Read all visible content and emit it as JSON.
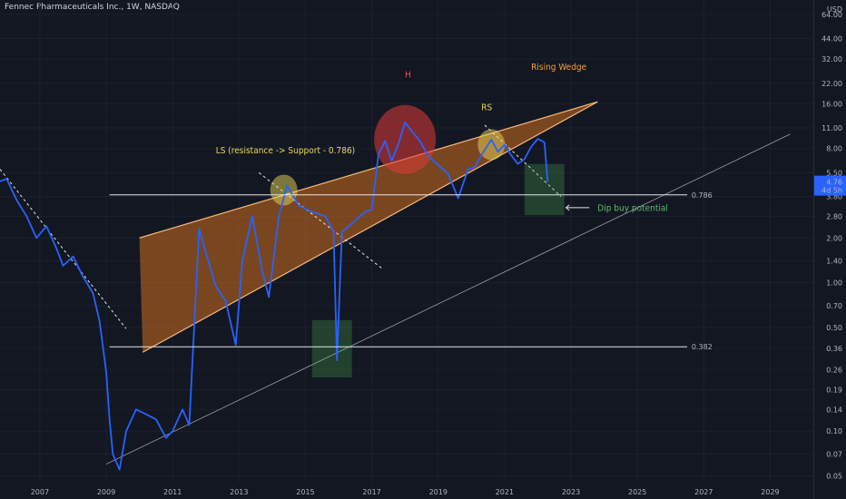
{
  "header": {
    "title": "Fennec Pharmaceuticals Inc., 1W, NASDAQ"
  },
  "colors": {
    "background": "#131722",
    "grid": "#1c2030",
    "price_line": "#2962ff",
    "wedge_fill": "#b8641e",
    "wedge_edge": "#f5b97a",
    "axis_text": "#b2b5be",
    "price_badge": "#2962ff"
  },
  "chart_data": {
    "type": "line",
    "title": "Fennec Pharmaceuticals Inc., 1W, NASDAQ",
    "y_scale": "log",
    "y_unit": "USD",
    "xlim": [
      2005.8,
      2030.3
    ],
    "ylim": [
      0.045,
      80
    ],
    "grid": true,
    "x_ticks": [
      "2007",
      "2009",
      "2011",
      "2013",
      "2015",
      "2017",
      "2019",
      "2021",
      "2023",
      "2025",
      "2027",
      "2029"
    ],
    "y_ticks": [
      "64.00",
      "44.00",
      "32.00",
      "22.00",
      "16.00",
      "11.00",
      "8.00",
      "5.50",
      "3.80",
      "2.80",
      "2.00",
      "1.40",
      "1.00",
      "0.70",
      "0.50",
      "0.36",
      "0.26",
      "0.19",
      "0.14",
      "0.10",
      "0.07",
      "0.05"
    ],
    "last_price": {
      "value": 4.76,
      "label": "4.76",
      "countdown": "4d 5h"
    },
    "series": [
      {
        "x": [
          2005.8,
          2006.0,
          2006.3,
          2006.6,
          2006.9,
          2007.2,
          2007.5,
          2007.7,
          2008.0,
          2008.3,
          2008.6,
          2008.8,
          2009.0,
          2009.1,
          2009.2,
          2009.4,
          2009.6,
          2009.9,
          2010.2,
          2010.5,
          2010.8,
          2011.0,
          2011.3,
          2011.5,
          2011.65,
          2011.8,
          2012.0,
          2012.3,
          2012.6,
          2012.9,
          2013.1,
          2013.4,
          2013.7,
          2013.9,
          2014.2,
          2014.45,
          2014.8,
          2015.2,
          2015.6,
          2015.85,
          2015.95,
          2016.1,
          2016.4,
          2016.8,
          2017.0,
          2017.2,
          2017.4,
          2017.6,
          2017.8,
          2018.0,
          2018.2,
          2018.45,
          2018.7,
          2019.0,
          2019.3,
          2019.6,
          2019.9,
          2020.1,
          2020.35,
          2020.6,
          2020.8,
          2021.0,
          2021.2,
          2021.4,
          2021.6,
          2021.8,
          2022.0,
          2022.2,
          2022.3
        ],
        "values": [
          4.8,
          5.0,
          3.6,
          2.8,
          2.0,
          2.4,
          1.7,
          1.3,
          1.5,
          1.1,
          0.85,
          0.55,
          0.25,
          0.12,
          0.07,
          0.055,
          0.1,
          0.14,
          0.13,
          0.12,
          0.09,
          0.1,
          0.14,
          0.11,
          0.5,
          2.3,
          1.6,
          0.95,
          0.75,
          0.38,
          1.4,
          2.8,
          1.2,
          0.8,
          2.8,
          4.5,
          3.3,
          3.0,
          2.8,
          2.2,
          0.3,
          2.2,
          2.5,
          3.0,
          3.1,
          7.3,
          9.0,
          6.6,
          8.6,
          12.0,
          10.5,
          9.0,
          7.1,
          6.2,
          5.4,
          3.7,
          5.8,
          6.0,
          7.5,
          9.2,
          7.6,
          8.5,
          7.2,
          6.3,
          6.8,
          8.2,
          9.3,
          8.8,
          4.76
        ]
      }
    ],
    "patterns": {
      "wedge_upper": {
        "from": [
          2010.0,
          2.0
        ],
        "to": [
          2023.8,
          16.5
        ]
      },
      "wedge_lower": {
        "from": [
          2010.1,
          0.34
        ],
        "to": [
          2023.8,
          16.5
        ]
      },
      "support_trend": {
        "from": [
          2009.0,
          0.06
        ],
        "to": [
          2029.6,
          10.0
        ]
      },
      "downtrend_1": {
        "from": [
          2005.8,
          5.8
        ],
        "to": [
          2009.6,
          0.49
        ]
      },
      "downtrend_2": {
        "from": [
          2013.6,
          5.5
        ],
        "to": [
          2017.3,
          1.25
        ]
      },
      "downtrend_3": {
        "from": [
          2020.4,
          11.5
        ],
        "to": [
          2022.7,
          3.8
        ]
      },
      "fib_levels": [
        {
          "label": "0.786",
          "value": 3.9
        },
        {
          "label": "0.382",
          "value": 0.37
        }
      ],
      "circles": [
        {
          "name": "LS",
          "x": 2014.35,
          "y": 4.2,
          "color": "#e8d85a"
        },
        {
          "name": "H",
          "x": 2018.0,
          "y": 9.2,
          "color": "#e03a3a"
        },
        {
          "name": "RS",
          "x": 2020.6,
          "y": 8.5,
          "color": "#e8d85a"
        }
      ],
      "boxes": [
        {
          "name": "dip-2016",
          "x0": 2015.2,
          "x1": 2016.4,
          "y0": 0.23,
          "y1": 0.56
        },
        {
          "name": "dip-buy",
          "x0": 2021.6,
          "x1": 2022.8,
          "y0": 2.85,
          "y1": 6.3
        }
      ]
    },
    "annotations": [
      {
        "text": "H",
        "x": 2018.0,
        "y": 24.0,
        "color": "#e85050"
      },
      {
        "text": "Rising Wedge",
        "x": 2021.8,
        "y": 27.0,
        "color": "#f0a040"
      },
      {
        "text": "RS",
        "x": 2020.3,
        "y": 14.5,
        "color": "#e8d85a"
      },
      {
        "text": "LS (resistance -> Support - 0.786)",
        "x": 2012.3,
        "y": 7.4,
        "color": "#e8d85a"
      },
      {
        "text": "Dip buy potential",
        "x": 2023.8,
        "y": 3.05,
        "color": "#5cbf6a"
      }
    ]
  }
}
